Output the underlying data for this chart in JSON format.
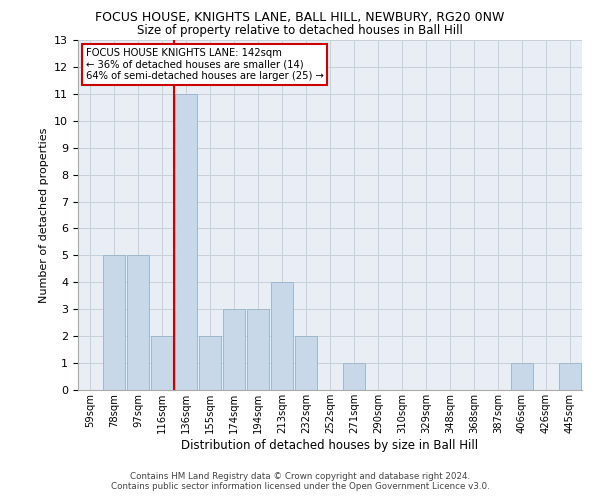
{
  "title1": "FOCUS HOUSE, KNIGHTS LANE, BALL HILL, NEWBURY, RG20 0NW",
  "title2": "Size of property relative to detached houses in Ball Hill",
  "xlabel": "Distribution of detached houses by size in Ball Hill",
  "ylabel": "Number of detached properties",
  "footnote1": "Contains HM Land Registry data © Crown copyright and database right 2024.",
  "footnote2": "Contains public sector information licensed under the Open Government Licence v3.0.",
  "categories": [
    "59sqm",
    "78sqm",
    "97sqm",
    "116sqm",
    "136sqm",
    "155sqm",
    "174sqm",
    "194sqm",
    "213sqm",
    "232sqm",
    "252sqm",
    "271sqm",
    "290sqm",
    "310sqm",
    "329sqm",
    "348sqm",
    "368sqm",
    "387sqm",
    "406sqm",
    "426sqm",
    "445sqm"
  ],
  "values": [
    0,
    5,
    5,
    2,
    11,
    2,
    3,
    3,
    4,
    2,
    0,
    1,
    0,
    0,
    0,
    0,
    0,
    0,
    1,
    0,
    1
  ],
  "bar_color": "#c8d8e8",
  "bar_edge_color": "#a0b8cc",
  "vline_index": 4,
  "vline_color": "#cc0000",
  "annotation_title": "FOCUS HOUSE KNIGHTS LANE: 142sqm",
  "annotation_line1": "← 36% of detached houses are smaller (14)",
  "annotation_line2": "64% of semi-detached houses are larger (25) →",
  "ylim": [
    0,
    13
  ],
  "yticks": [
    0,
    1,
    2,
    3,
    4,
    5,
    6,
    7,
    8,
    9,
    10,
    11,
    12,
    13
  ],
  "background_color": "#ffffff",
  "grid_color": "#c8d0d8",
  "ax_bg_color": "#e8eef4"
}
